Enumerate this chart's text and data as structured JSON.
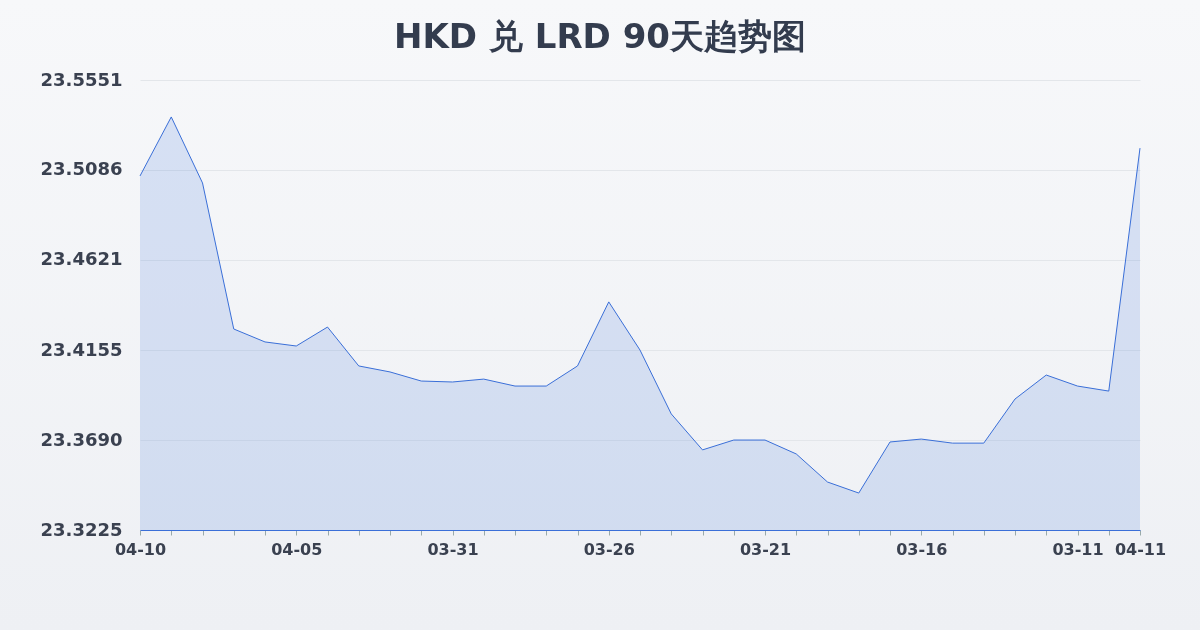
{
  "chart_data": {
    "type": "area",
    "title": "HKD 兑 LRD 90天趋势图",
    "categories": [
      "04-10",
      null,
      null,
      null,
      null,
      "04-05",
      null,
      null,
      null,
      null,
      "03-31",
      null,
      null,
      null,
      null,
      "03-26",
      null,
      null,
      null,
      null,
      "03-21",
      null,
      null,
      null,
      null,
      "03-16",
      null,
      null,
      null,
      null,
      "03-11",
      null,
      "04-11"
    ],
    "series": [
      {
        "color": "#3a6fd8",
        "values": [
          23.5055,
          23.536,
          23.5019,
          23.4264,
          23.4197,
          23.4176,
          23.4274,
          23.4073,
          23.4042,
          23.3995,
          23.399,
          23.4005,
          23.3969,
          23.3969,
          23.4073,
          23.4404,
          23.4155,
          23.3825,
          23.3639,
          23.369,
          23.369,
          23.3618,
          23.3473,
          23.3416,
          23.368,
          23.3695,
          23.3674,
          23.3674,
          23.3902,
          23.4026,
          23.3969,
          23.3943,
          23.5199
        ]
      }
    ],
    "ylim": [
      23.3225,
      23.5551
    ],
    "yticks": [
      {
        "value": 23.3225,
        "label": "23.3225"
      },
      {
        "value": 23.369,
        "label": "23.3690"
      },
      {
        "value": 23.4155,
        "label": "23.4155"
      },
      {
        "value": 23.4621,
        "label": "23.4621"
      },
      {
        "value": 23.5086,
        "label": "23.5086"
      },
      {
        "value": 23.5551,
        "label": "23.5551"
      }
    ],
    "grid": "y",
    "marker": "none"
  }
}
